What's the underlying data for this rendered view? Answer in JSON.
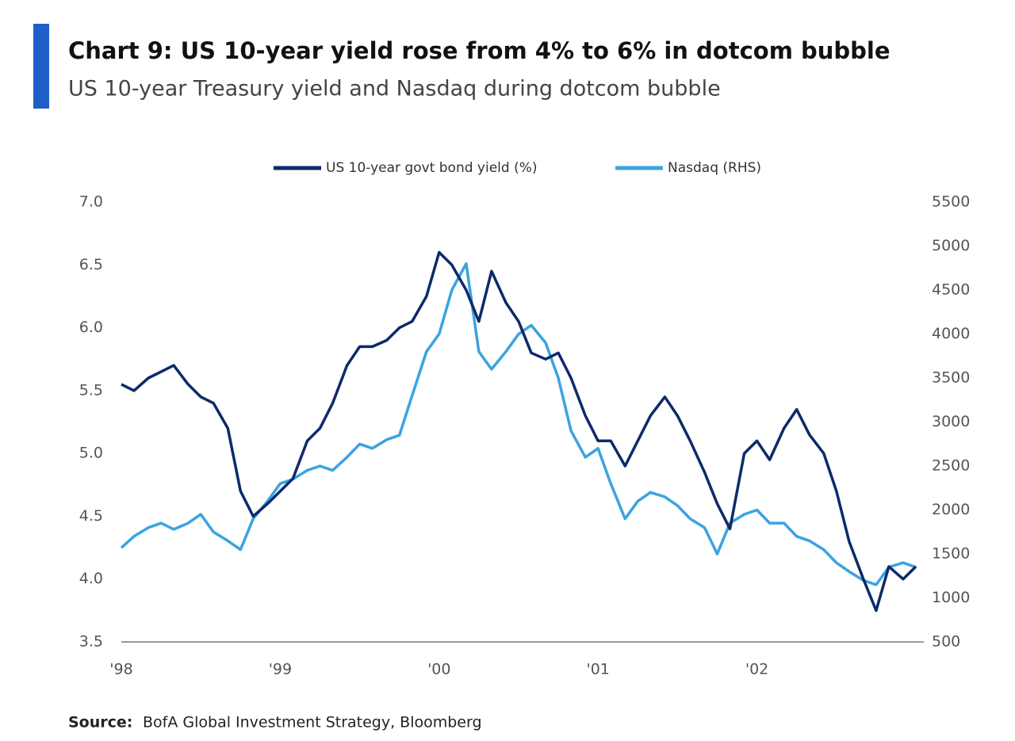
{
  "chart_data": {
    "type": "line",
    "title": "Chart 9: US 10-year yield rose from 4% to 6% in dotcom bubble",
    "subtitle": "US 10-year Treasury yield and Nasdaq during dotcom bubble",
    "source_label": "Source:",
    "source": "BofA Global Investment Strategy, Bloomberg",
    "x": [
      1998.0,
      1998.08,
      1998.17,
      1998.25,
      1998.33,
      1998.42,
      1998.5,
      1998.58,
      1998.67,
      1998.75,
      1998.83,
      1998.92,
      1999.0,
      1999.08,
      1999.17,
      1999.25,
      1999.33,
      1999.42,
      1999.5,
      1999.58,
      1999.67,
      1999.75,
      1999.83,
      1999.92,
      2000.0,
      2000.08,
      2000.17,
      2000.25,
      2000.33,
      2000.42,
      2000.5,
      2000.58,
      2000.67,
      2000.75,
      2000.83,
      2000.92,
      2001.0,
      2001.08,
      2001.17,
      2001.25,
      2001.33,
      2001.42,
      2001.5,
      2001.58,
      2001.67,
      2001.75,
      2001.83,
      2001.92,
      2002.0,
      2002.08,
      2002.17,
      2002.25,
      2002.33,
      2002.42,
      2002.5,
      2002.58,
      2002.67,
      2002.75,
      2002.83,
      2002.92,
      2003.0
    ],
    "series": [
      {
        "name": "US 10-year govt bond yield (%)",
        "color": "#0d2a6b",
        "axis": "y",
        "values": [
          5.55,
          5.5,
          5.6,
          5.65,
          5.7,
          5.55,
          5.45,
          5.4,
          5.2,
          4.7,
          4.5,
          4.6,
          4.7,
          4.8,
          5.1,
          5.2,
          5.4,
          5.7,
          5.85,
          5.85,
          5.9,
          6.0,
          6.05,
          6.25,
          6.6,
          6.5,
          6.3,
          6.05,
          6.45,
          6.2,
          6.05,
          5.8,
          5.75,
          5.8,
          5.6,
          5.3,
          5.1,
          5.1,
          4.9,
          5.1,
          5.3,
          5.45,
          5.3,
          5.1,
          4.85,
          4.6,
          4.4,
          5.0,
          5.1,
          4.95,
          5.2,
          5.35,
          5.15,
          5.0,
          4.7,
          4.3,
          4.0,
          3.75,
          4.1,
          4.0,
          4.1
        ]
      },
      {
        "name": "Nasdaq (RHS)",
        "color": "#3ba3e0",
        "axis": "y2",
        "values": [
          1570,
          1700,
          1800,
          1850,
          1780,
          1850,
          1950,
          1750,
          1650,
          1550,
          1900,
          2100,
          2300,
          2350,
          2450,
          2500,
          2450,
          2600,
          2750,
          2700,
          2800,
          2850,
          3300,
          3800,
          4000,
          4500,
          4800,
          3800,
          3600,
          3800,
          4000,
          4100,
          3900,
          3500,
          2900,
          2600,
          2700,
          2300,
          1900,
          2100,
          2200,
          2150,
          2050,
          1900,
          1800,
          1500,
          1850,
          1950,
          2000,
          1850,
          1850,
          1700,
          1650,
          1550,
          1400,
          1300,
          1200,
          1150,
          1350,
          1400,
          1350
        ]
      }
    ],
    "xlim": [
      1998,
      2003.05
    ],
    "xticks": [
      {
        "value": 1998,
        "label": "'98"
      },
      {
        "value": 1999,
        "label": "'99"
      },
      {
        "value": 2000,
        "label": "'00"
      },
      {
        "value": 2001,
        "label": "'01"
      },
      {
        "value": 2002,
        "label": "'02"
      }
    ],
    "ylim": [
      3.5,
      7
    ],
    "yticks": [
      3.5,
      {
        "value": 4,
        "label": "4.0"
      },
      4.5,
      {
        "value": 5,
        "label": "5.0"
      },
      5.5,
      {
        "value": 6,
        "label": "6.0"
      },
      6.5,
      {
        "value": 7,
        "label": "7.0"
      }
    ],
    "y2lim": [
      500,
      5500
    ],
    "y2ticks": [
      500,
      1000,
      1500,
      2000,
      2500,
      3000,
      3500,
      4000,
      4500,
      5000,
      5500
    ],
    "grid": false
  }
}
